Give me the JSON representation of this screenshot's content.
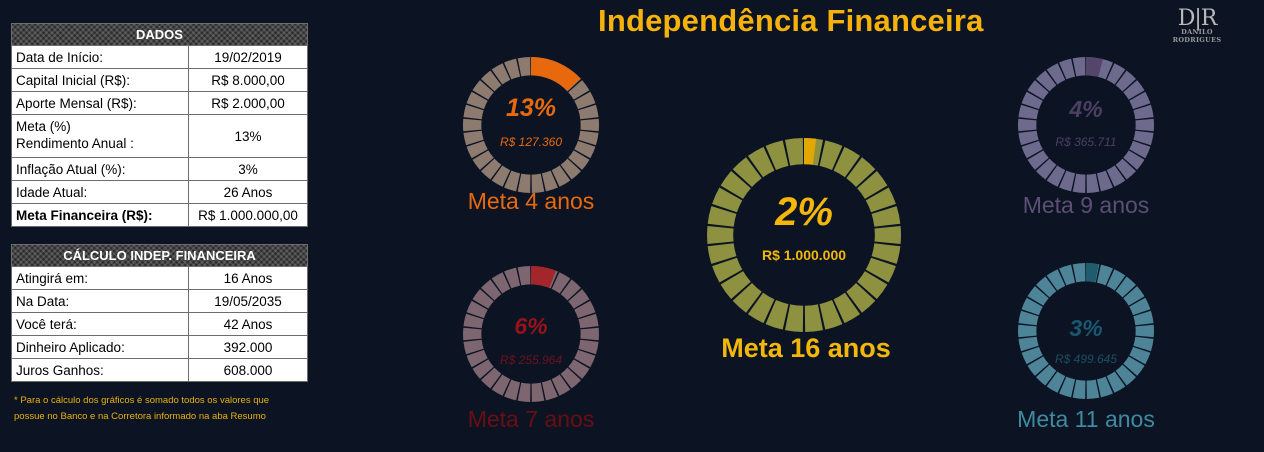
{
  "title": "Independência Financeira",
  "logo": {
    "mark": "D|R",
    "name": "DANILO RODRIGUES"
  },
  "dados": {
    "header": "DADOS",
    "rows": [
      {
        "label": "Data de Início:",
        "value": "19/02/2019"
      },
      {
        "label": "Capital Inicial (R$):",
        "value": "R$ 8.000,00"
      },
      {
        "label": "Aporte Mensal (R$):",
        "value": "R$ 2.000,00"
      },
      {
        "label": "Meta (%)\nRendimento  Anual :",
        "value": "13%"
      },
      {
        "label": "Inflação Atual (%):",
        "value": "3%"
      },
      {
        "label": "Idade Atual:",
        "value": "26 Anos"
      },
      {
        "label": "Meta Financeira (R$):",
        "value": "R$ 1.000.000,00"
      }
    ]
  },
  "calculo": {
    "header": "CÁLCULO INDEP. FINANCEIRA",
    "rows": [
      {
        "label": "Atingirá em:",
        "value": "16 Anos"
      },
      {
        "label": "Na Data:",
        "value": "19/05/2035"
      },
      {
        "label": "Você terá:",
        "value": "42 Anos"
      },
      {
        "label": "Dinheiro Aplicado:",
        "value": "392.000"
      },
      {
        "label": "Juros Ganhos:",
        "value": "608.000"
      }
    ]
  },
  "note": "* Para o cálculo dos gráficos é somado todos os valores que possue no Banco e na Corretora informado na aba Resumo",
  "gauges": [
    {
      "id": "meta-4",
      "pct_label": "13%",
      "progress": 0.13,
      "amount": "R$ 127.360",
      "caption": "Meta  4  anos",
      "color": "#e8690d",
      "ring": "#8e7b70",
      "pct_color": "#e8690d",
      "amt_color": "#e8690d",
      "cap_color": "#e8690d"
    },
    {
      "id": "meta-16",
      "pct_label": "2%",
      "progress": 0.02,
      "amount": "R$ 1.000.000",
      "caption": "Meta  16  anos",
      "color": "#e0a800",
      "ring": "#8e9140",
      "pct_color": "#f2b70a",
      "amt_color": "#f2b70a",
      "cap_color": "#f2b70a"
    },
    {
      "id": "meta-9",
      "pct_label": "4%",
      "progress": 0.04,
      "amount": "R$ 365.711",
      "caption": "Meta  9   anos",
      "color": "#54466a",
      "ring": "#6d6a8d",
      "pct_color": "#4c3f63",
      "amt_color": "#4c3f63",
      "cap_color": "#5b4f74"
    },
    {
      "id": "meta-7",
      "pct_label": "6%",
      "progress": 0.06,
      "amount": "R$ 255.964",
      "caption": "Meta  7  anos",
      "color": "#a3262a",
      "ring": "#7d6670",
      "pct_color": "#97121a",
      "amt_color": "#6e121a",
      "cap_color": "#6a0e14"
    },
    {
      "id": "meta-11",
      "pct_label": "3%",
      "progress": 0.03,
      "amount": "R$ 499.645",
      "caption": "Meta 11  anos",
      "color": "#1f5c6e",
      "ring": "#4d8498",
      "pct_color": "#1a5870",
      "amt_color": "#1d4e60",
      "cap_color": "#3f8aa0"
    }
  ]
}
